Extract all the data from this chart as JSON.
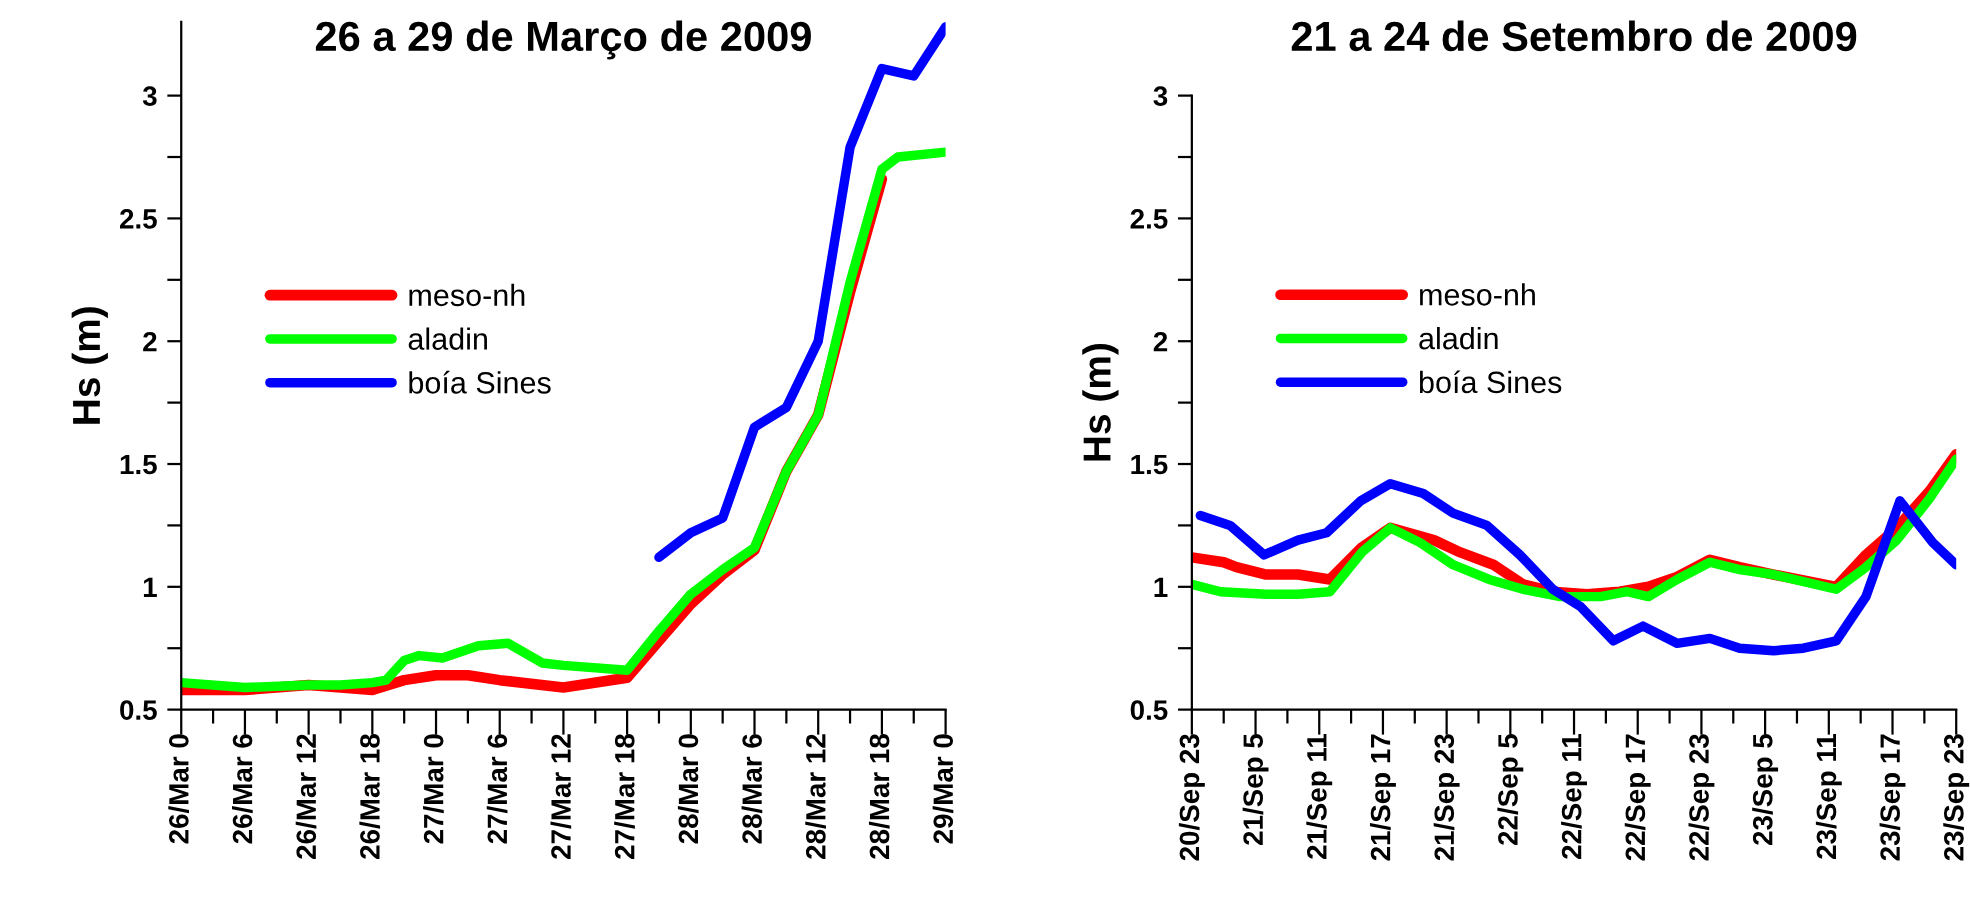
{
  "chart_data": [
    {
      "type": "line",
      "title": "26 a 29 de Março de 2009",
      "ylabel": "Hs (m)",
      "legend": "center",
      "xlim": [
        "2009-03-26T00:00",
        "2009-03-29T00:00"
      ],
      "ylim": [
        0.5,
        3.3
      ],
      "xticks": [
        {
          "value": "2009-03-26T00:00",
          "label": "26/Mar 0"
        },
        {
          "value": "2009-03-26T03:00",
          "label": null
        },
        {
          "value": "2009-03-26T06:00",
          "label": "26/Mar 6"
        },
        {
          "value": "2009-03-26T09:00",
          "label": null
        },
        {
          "value": "2009-03-26T12:00",
          "label": "26/Mar 12"
        },
        {
          "value": "2009-03-26T15:00",
          "label": null
        },
        {
          "value": "2009-03-26T18:00",
          "label": "26/Mar 18"
        },
        {
          "value": "2009-03-26T21:00",
          "label": null
        },
        {
          "value": "2009-03-27T00:00",
          "label": "27/Mar 0"
        },
        {
          "value": "2009-03-27T03:00",
          "label": null
        },
        {
          "value": "2009-03-27T06:00",
          "label": "27/Mar 6"
        },
        {
          "value": "2009-03-27T09:00",
          "label": null
        },
        {
          "value": "2009-03-27T12:00",
          "label": "27/Mar 12"
        },
        {
          "value": "2009-03-27T15:00",
          "label": null
        },
        {
          "value": "2009-03-27T18:00",
          "label": "27/Mar 18"
        },
        {
          "value": "2009-03-27T21:00",
          "label": null
        },
        {
          "value": "2009-03-28T00:00",
          "label": "28/Mar 0"
        },
        {
          "value": "2009-03-28T03:00",
          "label": null
        },
        {
          "value": "2009-03-28T06:00",
          "label": "28/Mar 6"
        },
        {
          "value": "2009-03-28T09:00",
          "label": null
        },
        {
          "value": "2009-03-28T12:00",
          "label": "28/Mar 12"
        },
        {
          "value": "2009-03-28T15:00",
          "label": null
        },
        {
          "value": "2009-03-28T18:00",
          "label": "28/Mar 18"
        },
        {
          "value": "2009-03-28T21:00",
          "label": null
        },
        {
          "value": "2009-03-29T00:00",
          "label": "29/Mar 0"
        }
      ],
      "yticks": [
        0.5,
        {
          "value": 0.75,
          "label": null
        },
        {
          "value": 1,
          "label": "1"
        },
        {
          "value": 1.25,
          "label": null
        },
        1.5,
        {
          "value": 1.75,
          "label": null
        },
        {
          "value": 2,
          "label": "2"
        },
        {
          "value": 2.25,
          "label": null
        },
        2.5,
        {
          "value": 2.75,
          "label": null
        },
        {
          "value": 3,
          "label": "3"
        }
      ],
      "series": [
        {
          "name": "meso-nh",
          "color": "#ff0000",
          "x": [
            "2009-03-26T00:00",
            "2009-03-26T06:00",
            "2009-03-26T12:00",
            "2009-03-26T15:00",
            "2009-03-26T18:00",
            "2009-03-26T21:00",
            "2009-03-27T00:00",
            "2009-03-27T03:00",
            "2009-03-27T06:00",
            "2009-03-27T12:00",
            "2009-03-27T18:00",
            "2009-03-27T21:00",
            "2009-03-28T00:00",
            "2009-03-28T03:00",
            "2009-03-28T06:00",
            "2009-03-28T09:00",
            "2009-03-28T12:00",
            "2009-03-28T15:00",
            "2009-03-28T18:00"
          ],
          "values": [
            0.58,
            0.58,
            0.6,
            0.59,
            0.58,
            0.62,
            0.64,
            0.64,
            0.62,
            0.59,
            0.63,
            0.78,
            0.93,
            1.05,
            1.15,
            1.47,
            1.7,
            2.2,
            2.66
          ]
        },
        {
          "name": "aladin",
          "color": "#00ff00",
          "x": [
            "2009-03-26T00:00",
            "2009-03-26T06:00",
            "2009-03-26T12:00",
            "2009-03-26T15:00",
            "2009-03-26T18:00",
            "2009-03-26T19:18",
            "2009-03-26T21:00",
            "2009-03-26T22:24",
            "2009-03-27T00:36",
            "2009-03-27T04:00",
            "2009-03-27T06:48",
            "2009-03-27T10:00",
            "2009-03-27T12:00",
            "2009-03-27T18:00",
            "2009-03-27T21:00",
            "2009-03-28T00:00",
            "2009-03-28T03:00",
            "2009-03-28T06:00",
            "2009-03-28T09:00",
            "2009-03-28T12:00",
            "2009-03-28T15:00",
            "2009-03-28T18:00",
            "2009-03-28T19:30",
            "2009-03-29T00:00"
          ],
          "values": [
            0.61,
            0.59,
            0.6,
            0.6,
            0.61,
            0.62,
            0.7,
            0.72,
            0.71,
            0.76,
            0.77,
            0.69,
            0.68,
            0.66,
            0.82,
            0.97,
            1.07,
            1.16,
            1.47,
            1.7,
            2.24,
            2.7,
            2.75,
            2.77
          ]
        },
        {
          "name": "boía Sines",
          "color": "#0000ff",
          "x": [
            "2009-03-27T21:00",
            "2009-03-28T00:00",
            "2009-03-28T03:00",
            "2009-03-28T06:00",
            "2009-03-28T09:00",
            "2009-03-28T12:00",
            "2009-03-28T15:00",
            "2009-03-28T18:00",
            "2009-03-28T21:00",
            "2009-03-29T00:00"
          ],
          "values": [
            1.12,
            1.22,
            1.28,
            1.65,
            1.73,
            2.0,
            2.79,
            3.11,
            3.08,
            3.28
          ]
        }
      ]
    },
    {
      "type": "line",
      "title": "21 a 24 de Setembro de 2009",
      "ylabel": "Hs (m)",
      "legend": "center",
      "xlim": [
        "2009-09-20T23:00",
        "2009-09-23T23:00"
      ],
      "ylim": [
        0.5,
        3
      ],
      "xticks": [
        {
          "value": "2009-09-20T23:00",
          "label": "20/Sep 23"
        },
        {
          "value": "2009-09-21T02:00",
          "label": null
        },
        {
          "value": "2009-09-21T05:00",
          "label": "21/Sep 5"
        },
        {
          "value": "2009-09-21T08:00",
          "label": null
        },
        {
          "value": "2009-09-21T11:00",
          "label": "21/Sep 11"
        },
        {
          "value": "2009-09-21T14:00",
          "label": null
        },
        {
          "value": "2009-09-21T17:00",
          "label": "21/Sep 17"
        },
        {
          "value": "2009-09-21T20:00",
          "label": null
        },
        {
          "value": "2009-09-21T23:00",
          "label": "21/Sep 23"
        },
        {
          "value": "2009-09-22T02:00",
          "label": null
        },
        {
          "value": "2009-09-22T05:00",
          "label": "22/Sep 5"
        },
        {
          "value": "2009-09-22T08:00",
          "label": null
        },
        {
          "value": "2009-09-22T11:00",
          "label": "22/Sep 11"
        },
        {
          "value": "2009-09-22T14:00",
          "label": null
        },
        {
          "value": "2009-09-22T17:00",
          "label": "22/Sep 17"
        },
        {
          "value": "2009-09-22T20:00",
          "label": null
        },
        {
          "value": "2009-09-22T23:00",
          "label": "22/Sep 23"
        },
        {
          "value": "2009-09-23T02:00",
          "label": null
        },
        {
          "value": "2009-09-23T05:00",
          "label": "23/Sep 5"
        },
        {
          "value": "2009-09-23T08:00",
          "label": null
        },
        {
          "value": "2009-09-23T11:00",
          "label": "23/Sep 11"
        },
        {
          "value": "2009-09-23T14:00",
          "label": null
        },
        {
          "value": "2009-09-23T17:00",
          "label": "23/Sep 17"
        },
        {
          "value": "2009-09-23T20:00",
          "label": null
        },
        {
          "value": "2009-09-23T23:00",
          "label": "23/Sep 23"
        }
      ],
      "yticks": [
        0.5,
        {
          "value": 0.75,
          "label": null
        },
        {
          "value": 1,
          "label": "1"
        },
        {
          "value": 1.25,
          "label": null
        },
        1.5,
        {
          "value": 1.75,
          "label": null
        },
        {
          "value": 2,
          "label": "2"
        },
        {
          "value": 2.25,
          "label": null
        },
        2.5,
        {
          "value": 2.75,
          "label": null
        },
        {
          "value": 3,
          "label": "3"
        }
      ],
      "series": [
        {
          "name": "meso-nh",
          "color": "#ff0000",
          "x": [
            "2009-09-20T23:00",
            "2009-09-21T02:00",
            "2009-09-21T03:12",
            "2009-09-21T06:00",
            "2009-09-21T09:00",
            "2009-09-21T12:00",
            "2009-09-21T15:00",
            "2009-09-21T17:42",
            "2009-09-21T21:48",
            "2009-09-22T00:18",
            "2009-09-22T03:24",
            "2009-09-22T06:12",
            "2009-09-22T09:00",
            "2009-09-22T12:12",
            "2009-09-22T15:18",
            "2009-09-22T18:00",
            "2009-09-22T20:42",
            "2009-09-22T23:48",
            "2009-09-23T02:36",
            "2009-09-23T05:48",
            "2009-09-23T11:42",
            "2009-09-23T14:30",
            "2009-09-23T17:24",
            "2009-09-23T20:30",
            "2009-09-23T23:00"
          ],
          "values": [
            1.12,
            1.1,
            1.08,
            1.05,
            1.05,
            1.03,
            1.16,
            1.24,
            1.19,
            1.14,
            1.09,
            1.01,
            0.98,
            0.97,
            0.98,
            1.0,
            1.04,
            1.11,
            1.08,
            1.05,
            1.0,
            1.13,
            1.24,
            1.39,
            1.54
          ]
        },
        {
          "name": "aladin",
          "color": "#00ff00",
          "x": [
            "2009-09-20T23:00",
            "2009-09-21T01:42",
            "2009-09-21T06:00",
            "2009-09-21T09:00",
            "2009-09-21T12:00",
            "2009-09-21T15:00",
            "2009-09-21T17:42",
            "2009-09-21T20:30",
            "2009-09-21T23:36",
            "2009-09-22T03:00",
            "2009-09-22T06:12",
            "2009-09-22T09:42",
            "2009-09-22T13:30",
            "2009-09-22T16:00",
            "2009-09-22T18:00",
            "2009-09-22T20:42",
            "2009-09-22T23:48",
            "2009-09-23T02:36",
            "2009-09-23T05:48",
            "2009-09-23T11:42",
            "2009-09-23T14:30",
            "2009-09-23T17:24",
            "2009-09-23T20:30",
            "2009-09-23T23:00"
          ],
          "values": [
            1.01,
            0.98,
            0.97,
            0.97,
            0.98,
            1.14,
            1.24,
            1.18,
            1.09,
            1.03,
            0.99,
            0.96,
            0.96,
            0.98,
            0.96,
            1.03,
            1.1,
            1.07,
            1.05,
            0.99,
            1.08,
            1.19,
            1.36,
            1.52
          ]
        },
        {
          "name": "boía Sines",
          "color": "#0000ff",
          "x": [
            "2009-09-20T23:48",
            "2009-09-21T02:36",
            "2009-09-21T05:48",
            "2009-09-21T09:00",
            "2009-09-21T11:42",
            "2009-09-21T14:54",
            "2009-09-21T17:42",
            "2009-09-21T20:48",
            "2009-09-21T23:36",
            "2009-09-22T02:48",
            "2009-09-22T05:54",
            "2009-09-22T09:00",
            "2009-09-22T11:36",
            "2009-09-22T14:42",
            "2009-09-22T17:30",
            "2009-09-22T20:42",
            "2009-09-22T23:48",
            "2009-09-23T02:36",
            "2009-09-23T05:48",
            "2009-09-23T08:36",
            "2009-09-23T11:42",
            "2009-09-23T14:30",
            "2009-09-23T17:42",
            "2009-09-23T20:48",
            "2009-09-23T23:00"
          ],
          "values": [
            1.29,
            1.25,
            1.13,
            1.19,
            1.22,
            1.35,
            1.42,
            1.38,
            1.3,
            1.25,
            1.13,
            0.99,
            0.92,
            0.78,
            0.84,
            0.77,
            0.79,
            0.75,
            0.74,
            0.75,
            0.78,
            0.96,
            1.35,
            1.18,
            1.09
          ]
        }
      ]
    }
  ]
}
